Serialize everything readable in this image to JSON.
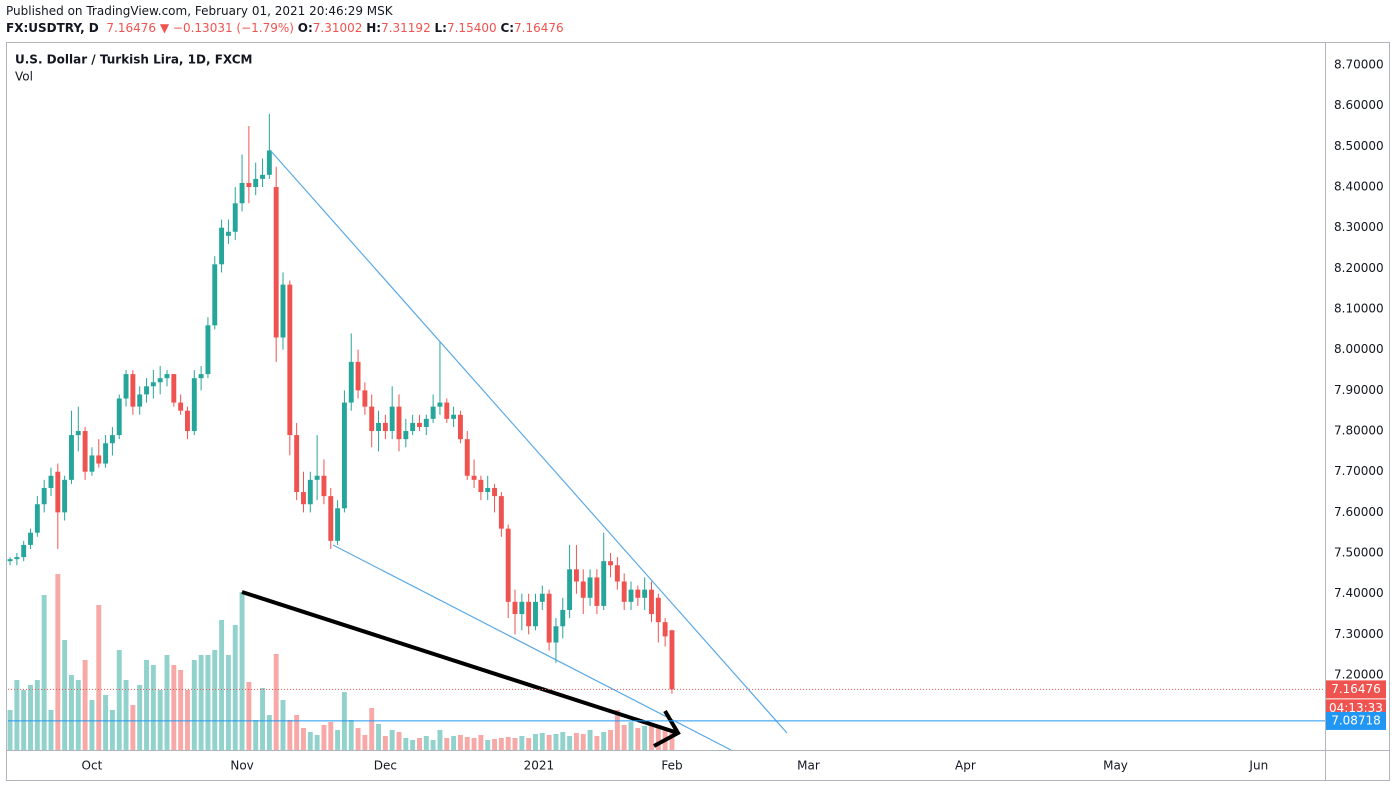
{
  "header": {
    "published": "Published on TradingView.com, February 01, 2021 20:46:29 MSK",
    "symbol": "FX:USDTRY, D",
    "last": "7.16476",
    "change": "−0.13031 (−1.79%)",
    "ohlc": [
      {
        "label": "O:",
        "value": "7.31002"
      },
      {
        "label": "H:",
        "value": "7.31192"
      },
      {
        "label": "L:",
        "value": "7.15400"
      },
      {
        "label": "C:",
        "value": "7.16476"
      }
    ]
  },
  "chart_data": {
    "type": "candlestick",
    "title": "U.S. Dollar / Turkish Lira, 1D, FXCM",
    "volume_label": "Vol",
    "up_color": "#26a69a",
    "down_color": "#ef5350",
    "volume_up_color": "rgba(38,166,154,0.5)",
    "volume_down_color": "rgba(239,83,80,0.5)",
    "open": [
      7.48,
      7.485,
      7.49,
      7.52,
      7.55,
      7.62,
      7.66,
      7.7,
      7.6,
      7.68,
      7.79,
      7.8,
      7.7,
      7.74,
      7.72,
      7.77,
      7.79,
      7.88,
      7.94,
      7.86,
      7.89,
      7.91,
      7.92,
      7.93,
      7.94,
      7.87,
      7.85,
      7.8,
      7.93,
      7.94,
      8.06,
      8.21,
      8.28,
      8.29,
      8.36,
      8.41,
      8.4,
      8.42,
      8.43,
      8.4,
      8.03,
      8.16,
      7.79,
      7.65,
      7.62,
      7.68,
      7.69,
      7.64,
      7.53,
      7.61,
      7.87,
      7.97,
      7.9,
      7.86,
      7.8,
      7.82,
      7.8,
      7.86,
      7.78,
      7.8,
      7.82,
      7.81,
      7.83,
      7.86,
      7.87,
      7.83,
      7.84,
      7.78,
      7.69,
      7.68,
      7.65,
      7.66,
      7.64,
      7.56,
      7.38,
      7.35,
      7.38,
      7.32,
      7.38,
      7.4,
      7.28,
      7.32,
      7.36,
      7.46,
      7.43,
      7.39,
      7.44,
      7.37,
      7.48,
      7.47,
      7.43,
      7.38,
      7.41,
      7.39,
      7.41,
      7.39,
      7.33,
      7.31002
    ],
    "high": [
      7.49,
      7.5,
      7.53,
      7.56,
      7.64,
      7.68,
      7.71,
      7.72,
      7.69,
      7.85,
      7.86,
      7.81,
      7.76,
      7.78,
      7.79,
      7.81,
      7.89,
      7.95,
      7.95,
      7.91,
      7.93,
      7.95,
      7.96,
      7.95,
      7.94,
      7.89,
      7.86,
      7.95,
      7.96,
      8.08,
      8.23,
      8.32,
      8.32,
      8.4,
      8.48,
      8.55,
      8.46,
      8.47,
      8.58,
      8.45,
      8.19,
      8.17,
      7.82,
      7.7,
      7.7,
      7.79,
      7.73,
      7.66,
      7.63,
      7.9,
      8.04,
      8.0,
      7.92,
      7.89,
      7.85,
      7.84,
      7.91,
      7.89,
      7.83,
      7.84,
      7.84,
      7.84,
      7.89,
      8.02,
      7.88,
      7.86,
      7.85,
      7.8,
      7.73,
      7.69,
      7.69,
      7.67,
      7.65,
      7.57,
      7.41,
      7.4,
      7.4,
      7.4,
      7.42,
      7.41,
      7.34,
      7.39,
      7.52,
      7.52,
      7.46,
      7.46,
      7.46,
      7.55,
      7.5,
      7.49,
      7.45,
      7.43,
      7.42,
      7.44,
      7.43,
      7.4,
      7.34,
      7.31192
    ],
    "low": [
      7.47,
      7.47,
      7.48,
      7.51,
      7.54,
      7.6,
      7.64,
      7.51,
      7.58,
      7.67,
      7.75,
      7.68,
      7.69,
      7.71,
      7.71,
      7.74,
      7.78,
      7.86,
      7.84,
      7.84,
      7.87,
      7.88,
      7.89,
      7.91,
      7.86,
      7.84,
      7.78,
      7.79,
      7.9,
      7.93,
      8.05,
      8.19,
      8.26,
      8.27,
      8.34,
      8.36,
      8.38,
      8.4,
      8.42,
      7.97,
      8.0,
      7.74,
      7.63,
      7.6,
      7.6,
      7.63,
      7.62,
      7.51,
      7.52,
      7.6,
      7.85,
      7.88,
      7.84,
      7.76,
      7.75,
      7.78,
      7.78,
      7.75,
      7.76,
      7.79,
      7.8,
      7.79,
      7.82,
      7.84,
      7.82,
      7.81,
      7.77,
      7.68,
      7.66,
      7.63,
      7.63,
      7.6,
      7.54,
      7.34,
      7.3,
      7.31,
      7.3,
      7.31,
      7.36,
      7.26,
      7.23,
      7.29,
      7.34,
      7.4,
      7.35,
      7.37,
      7.35,
      7.36,
      7.44,
      7.41,
      7.36,
      7.36,
      7.37,
      7.36,
      7.33,
      7.28,
      7.27,
      7.154
    ],
    "close": [
      7.485,
      7.49,
      7.52,
      7.55,
      7.62,
      7.66,
      7.69,
      7.6,
      7.68,
      7.79,
      7.8,
      7.7,
      7.74,
      7.72,
      7.77,
      7.79,
      7.88,
      7.94,
      7.86,
      7.89,
      7.91,
      7.92,
      7.93,
      7.94,
      7.87,
      7.85,
      7.8,
      7.93,
      7.94,
      8.06,
      8.21,
      8.3,
      8.29,
      8.36,
      8.41,
      8.4,
      8.42,
      8.43,
      8.49,
      8.03,
      8.16,
      7.79,
      7.65,
      7.62,
      7.68,
      7.69,
      7.64,
      7.53,
      7.61,
      7.87,
      7.97,
      7.9,
      7.86,
      7.8,
      7.82,
      7.8,
      7.86,
      7.78,
      7.8,
      7.82,
      7.81,
      7.83,
      7.86,
      7.87,
      7.83,
      7.84,
      7.78,
      7.69,
      7.68,
      7.65,
      7.66,
      7.64,
      7.56,
      7.38,
      7.35,
      7.38,
      7.32,
      7.38,
      7.4,
      7.28,
      7.32,
      7.36,
      7.46,
      7.43,
      7.39,
      7.44,
      7.37,
      7.48,
      7.47,
      7.43,
      7.38,
      7.41,
      7.39,
      7.41,
      7.35,
      7.33,
      7.29507,
      7.16476
    ],
    "volume": [
      40,
      70,
      60,
      65,
      70,
      155,
      40,
      176,
      110,
      75,
      70,
      90,
      50,
      145,
      55,
      40,
      100,
      70,
      45,
      65,
      90,
      85,
      60,
      95,
      85,
      80,
      60,
      90,
      95,
      95,
      100,
      130,
      95,
      125,
      158,
      68,
      30,
      62,
      35,
      96,
      50,
      30,
      35,
      22,
      18,
      15,
      25,
      28,
      20,
      58,
      30,
      22,
      15,
      42,
      26,
      14,
      20,
      18,
      12,
      10,
      12,
      14,
      10,
      20,
      12,
      14,
      15,
      13,
      12,
      15,
      10,
      11,
      12,
      13,
      12,
      14,
      12,
      16,
      17,
      15,
      16,
      18,
      14,
      17,
      16,
      20,
      14,
      18,
      20,
      40,
      25,
      28,
      22,
      24,
      26,
      24,
      22,
      20
    ],
    "volume_ylim": [
      0,
      236
    ],
    "xlim": [
      -0.3,
      192.7
    ],
    "xticks": [
      {
        "value": 12,
        "label": "Oct"
      },
      {
        "value": 34,
        "label": "Nov"
      },
      {
        "value": 55,
        "label": "Dec"
      },
      {
        "value": 77.5,
        "label": "2021"
      },
      {
        "value": 97,
        "label": "Feb"
      },
      {
        "value": 117,
        "label": "Mar"
      },
      {
        "value": 140,
        "label": "Apr"
      },
      {
        "value": 162,
        "label": "May"
      },
      {
        "value": 183,
        "label": "Jun"
      }
    ],
    "ylim": [
      7.0157,
      8.7566
    ],
    "yticks": [
      {
        "value": 8.7,
        "label": "8.70000"
      },
      {
        "value": 8.6,
        "label": "8.60000"
      },
      {
        "value": 8.5,
        "label": "8.50000"
      },
      {
        "value": 8.4,
        "label": "8.40000"
      },
      {
        "value": 8.3,
        "label": "8.30000"
      },
      {
        "value": 8.2,
        "label": "8.20000"
      },
      {
        "value": 8.1,
        "label": "8.10000"
      },
      {
        "value": 8.0,
        "label": "8.00000"
      },
      {
        "value": 7.9,
        "label": "7.90000"
      },
      {
        "value": 7.8,
        "label": "7.80000"
      },
      {
        "value": 7.7,
        "label": "7.70000"
      },
      {
        "value": 7.6,
        "label": "7.60000"
      },
      {
        "value": 7.5,
        "label": "7.50000"
      },
      {
        "value": 7.4,
        "label": "7.40000"
      },
      {
        "value": 7.3,
        "label": "7.30000"
      },
      {
        "value": 7.2,
        "label": "7.20000"
      }
    ],
    "last_price": 7.16476,
    "countdown": "04:13:33",
    "horizontal_line": 7.08718,
    "horizontal_line_color": "#2196f3"
  }
}
